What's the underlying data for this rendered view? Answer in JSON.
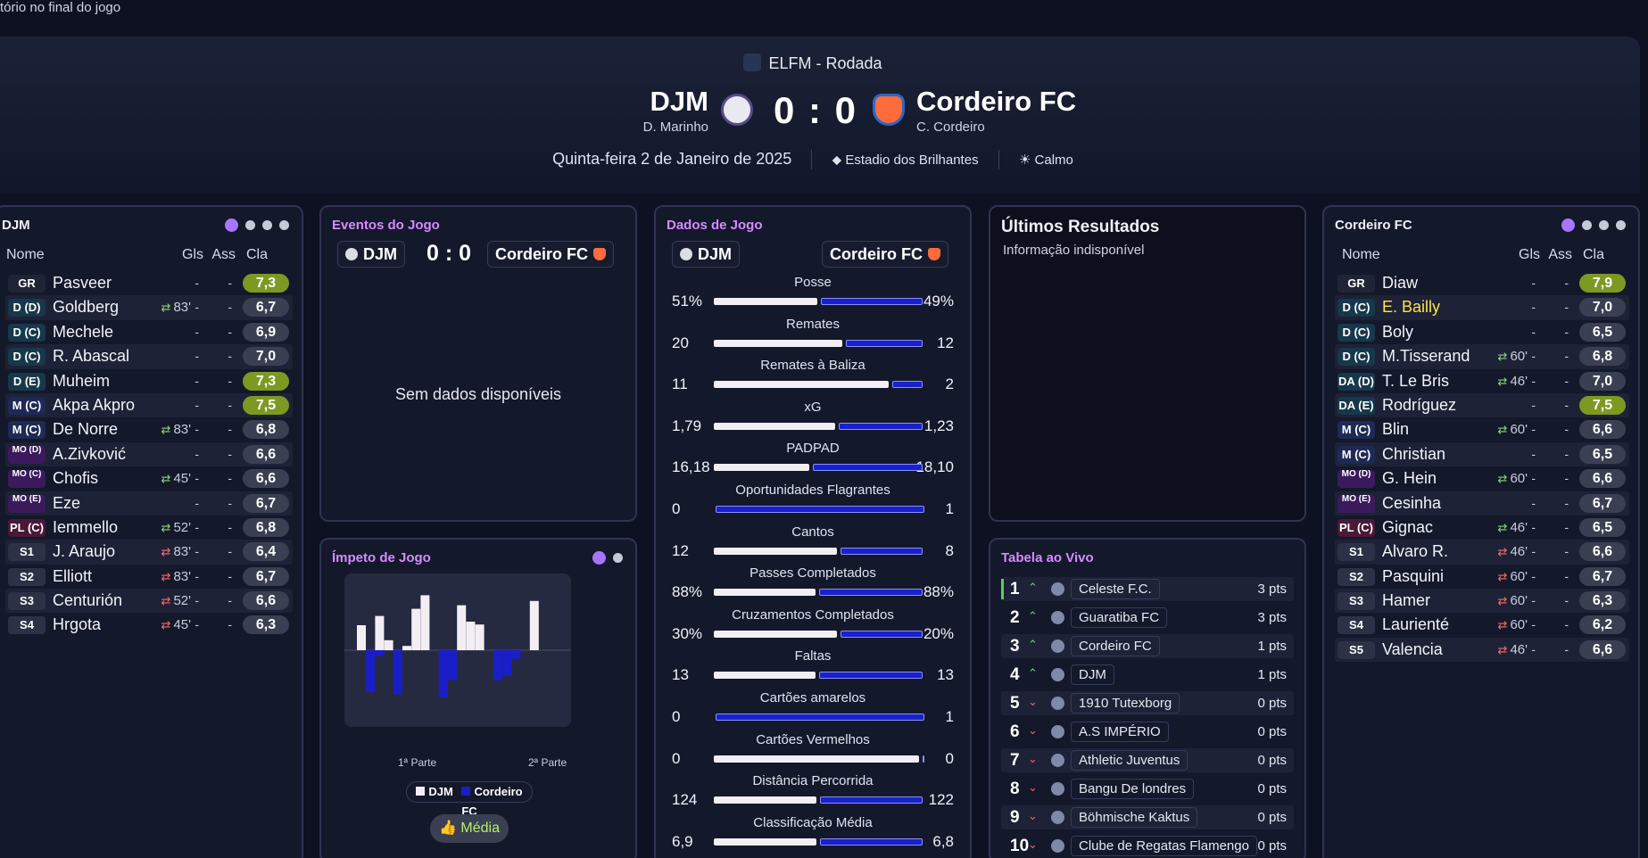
{
  "top_caption": "tório no final do jogo",
  "header": {
    "competition": "ELFM - Rodada",
    "home": {
      "name": "DJM",
      "manager": "D. Marinho"
    },
    "away": {
      "name": "Cordeiro FC",
      "manager": "C. Cordeiro"
    },
    "score": "0 : 0",
    "date": "Quinta-feira 2 de Janeiro de 2025",
    "stadium": "Estadio dos Brilhantes",
    "weather": "Calmo",
    "weather_icon": "sun-icon",
    "stadium_icon": "stadium-icon"
  },
  "lineup_home": {
    "title": "DJM",
    "headers": {
      "name": "Nome",
      "gls": "Gls",
      "ass": "Ass",
      "cla": "Cla"
    },
    "players": [
      {
        "pos": "GR",
        "name": "Pasveer",
        "sub": "",
        "gls": "-",
        "ass": "-",
        "rating": "7,3"
      },
      {
        "pos": "D (D)",
        "name": "Goldberg",
        "sub": "83'",
        "gls": "-",
        "ass": "-",
        "rating": "6,7"
      },
      {
        "pos": "D (C)",
        "name": "Mechele",
        "sub": "",
        "gls": "-",
        "ass": "-",
        "rating": "6,9"
      },
      {
        "pos": "D (C)",
        "name": "R. Abascal",
        "sub": "",
        "gls": "-",
        "ass": "-",
        "rating": "7,0"
      },
      {
        "pos": "D (E)",
        "name": "Muheim",
        "sub": "",
        "gls": "-",
        "ass": "-",
        "rating": "7,3"
      },
      {
        "pos": "M (C)",
        "name": "Akpa Akpro",
        "sub": "",
        "gls": "-",
        "ass": "-",
        "rating": "7,5"
      },
      {
        "pos": "M (C)",
        "name": "De Norre",
        "sub": "83'",
        "gls": "-",
        "ass": "-",
        "rating": "6,8"
      },
      {
        "pos": "MO (D)",
        "name": "A.Zivković",
        "sub": "",
        "gls": "-",
        "ass": "-",
        "rating": "6,6"
      },
      {
        "pos": "MO (C)",
        "name": "Chofis",
        "sub": "45'",
        "gls": "-",
        "ass": "-",
        "rating": "6,6"
      },
      {
        "pos": "MO (E)",
        "name": "Eze",
        "sub": "",
        "gls": "-",
        "ass": "-",
        "rating": "6,7"
      },
      {
        "pos": "PL (C)",
        "name": "Iemmello",
        "sub": "52'",
        "gls": "-",
        "ass": "-",
        "rating": "6,8"
      },
      {
        "pos": "S1",
        "name": "J. Araujo",
        "sub": "83'",
        "gls": "-",
        "ass": "-",
        "rating": "6,4"
      },
      {
        "pos": "S2",
        "name": "Elliott",
        "sub": "83'",
        "gls": "-",
        "ass": "-",
        "rating": "6,7"
      },
      {
        "pos": "S3",
        "name": "Centurión",
        "sub": "52'",
        "gls": "-",
        "ass": "-",
        "rating": "6,6"
      },
      {
        "pos": "S4",
        "name": "Hrgota",
        "sub": "45'",
        "gls": "-",
        "ass": "-",
        "rating": "6,3"
      }
    ]
  },
  "lineup_away": {
    "title": "Cordeiro FC",
    "headers": {
      "name": "Nome",
      "gls": "Gls",
      "ass": "Ass",
      "cla": "Cla"
    },
    "players": [
      {
        "pos": "GR",
        "name": "Diaw",
        "sub": "",
        "gls": "-",
        "ass": "-",
        "rating": "7,9"
      },
      {
        "pos": "D (C)",
        "name": "E. Bailly",
        "sub": "",
        "gls": "-",
        "ass": "-",
        "rating": "7,0"
      },
      {
        "pos": "D (C)",
        "name": "Boly",
        "sub": "",
        "gls": "-",
        "ass": "-",
        "rating": "6,5"
      },
      {
        "pos": "D (C)",
        "name": "M.Tisserand",
        "sub": "60'",
        "gls": "-",
        "ass": "-",
        "rating": "6,8"
      },
      {
        "pos": "DA (D)",
        "name": "T. Le Bris",
        "sub": "46'",
        "gls": "-",
        "ass": "-",
        "rating": "7,0"
      },
      {
        "pos": "DA (E)",
        "name": "Rodríguez",
        "sub": "",
        "gls": "-",
        "ass": "-",
        "rating": "7,5"
      },
      {
        "pos": "M (C)",
        "name": "Blin",
        "sub": "60'",
        "gls": "-",
        "ass": "-",
        "rating": "6,6"
      },
      {
        "pos": "M (C)",
        "name": "Christian",
        "sub": "",
        "gls": "-",
        "ass": "-",
        "rating": "6,5"
      },
      {
        "pos": "MO (D)",
        "name": "G. Hein",
        "sub": "60'",
        "gls": "-",
        "ass": "-",
        "rating": "6,6"
      },
      {
        "pos": "MO (E)",
        "name": "Cesinha",
        "sub": "",
        "gls": "-",
        "ass": "-",
        "rating": "6,7"
      },
      {
        "pos": "PL (C)",
        "name": "Gignac",
        "sub": "46'",
        "gls": "-",
        "ass": "-",
        "rating": "6,5"
      },
      {
        "pos": "S1",
        "name": "Alvaro R.",
        "sub": "46'",
        "gls": "-",
        "ass": "-",
        "rating": "6,6"
      },
      {
        "pos": "S2",
        "name": "Pasquini",
        "sub": "60'",
        "gls": "-",
        "ass": "-",
        "rating": "6,7"
      },
      {
        "pos": "S3",
        "name": "Hamer",
        "sub": "60'",
        "gls": "-",
        "ass": "-",
        "rating": "6,3"
      },
      {
        "pos": "S4",
        "name": "Laurienté",
        "sub": "60'",
        "gls": "-",
        "ass": "-",
        "rating": "6,2"
      },
      {
        "pos": "S5",
        "name": "Valencia",
        "sub": "46'",
        "gls": "-",
        "ass": "-",
        "rating": "6,6"
      }
    ]
  },
  "events": {
    "title": "Eventos do Jogo",
    "home": "DJM",
    "score": "0 : 0",
    "away": "Cordeiro FC",
    "no_data": "Sem dados disponíveis"
  },
  "stats": {
    "title": "Dados de Jogo",
    "home": "DJM",
    "away": "Cordeiro FC",
    "rows": [
      {
        "label": "Posse",
        "home": "51%",
        "away": "49%",
        "hv": 51,
        "av": 49
      },
      {
        "label": "Remates",
        "home": "20",
        "away": "12",
        "hv": 20,
        "av": 12
      },
      {
        "label": "Remates à Baliza",
        "home": "11",
        "away": "2",
        "hv": 11,
        "av": 2
      },
      {
        "label": "xG",
        "home": "1,79",
        "away": "1,23",
        "hv": 1.79,
        "av": 1.23
      },
      {
        "label": "PADPAD",
        "home": "16,18",
        "away": "18,10",
        "hv": 16.18,
        "av": 18.1
      },
      {
        "label": "Oportunidades Flagrantes",
        "home": "0",
        "away": "1",
        "hv": 0,
        "av": 1
      },
      {
        "label": "Cantos",
        "home": "12",
        "away": "8",
        "hv": 12,
        "av": 8
      },
      {
        "label": "Passes Completados",
        "home": "88%",
        "away": "88%",
        "hv": 88,
        "av": 88
      },
      {
        "label": "Cruzamentos Completados",
        "home": "30%",
        "away": "20%",
        "hv": 30,
        "av": 20
      },
      {
        "label": "Faltas",
        "home": "13",
        "away": "13",
        "hv": 13,
        "av": 13
      },
      {
        "label": "Cartões amarelos",
        "home": "0",
        "away": "1",
        "hv": 0,
        "av": 1
      },
      {
        "label": "Cartões Vermelhos",
        "home": "0",
        "away": "0",
        "hv": 0,
        "av": 0
      },
      {
        "label": "Distância Percorrida",
        "home": "124",
        "away": "122",
        "hv": 124,
        "av": 122
      },
      {
        "label": "Classificação Média",
        "home": "6,9",
        "away": "6,8",
        "hv": 6.9,
        "av": 6.8
      }
    ]
  },
  "results": {
    "title": "Últimos Resultados",
    "subtitle": "Informação indisponível"
  },
  "momentum": {
    "title": "Ímpeto de Jogo",
    "first_half": "1ª Parte",
    "second_half": "2ª Parte",
    "legend_home": "DJM",
    "legend_away": "Cordeiro FC",
    "home_color": "#f3eef3",
    "away_color": "#1a1ec8",
    "button": "Média",
    "button_icon": "thumbs-up-icon"
  },
  "chart_data": {
    "type": "bar",
    "x": [
      1,
      2,
      3,
      4,
      5,
      6,
      7,
      8,
      9,
      10,
      11,
      12,
      13,
      14,
      15,
      16,
      17,
      18,
      19,
      20,
      21,
      22,
      23,
      24
    ],
    "series": [
      {
        "name": "DJM",
        "values": [
          35,
          0,
          48,
          14,
          0,
          6,
          58,
          77,
          0,
          0,
          0,
          63,
          40,
          36,
          0,
          0,
          0,
          0,
          0,
          69,
          0,
          0,
          0,
          0
        ]
      },
      {
        "name": "Cordeiro FC",
        "values": [
          0,
          -58,
          -8,
          0,
          -62,
          0,
          0,
          0,
          0,
          -66,
          -42,
          0,
          0,
          0,
          0,
          -42,
          -36,
          -12,
          0,
          0,
          0,
          0,
          0,
          0
        ]
      }
    ]
  },
  "league_table": {
    "title": "Tabela ao Vivo",
    "rows": [
      {
        "pos": "1",
        "dir": "up",
        "club": "Celeste F.C.",
        "pts": "3 pts"
      },
      {
        "pos": "2",
        "dir": "up",
        "club": "Guaratiba FC",
        "pts": "3 pts"
      },
      {
        "pos": "3",
        "dir": "up",
        "club": "Cordeiro FC",
        "pts": "1 pts"
      },
      {
        "pos": "4",
        "dir": "up",
        "club": "DJM",
        "pts": "1 pts"
      },
      {
        "pos": "5",
        "dir": "down",
        "club": "1910 Tutexborg",
        "pts": "0 pts"
      },
      {
        "pos": "6",
        "dir": "down",
        "club": "A.S IMPÉRIO",
        "pts": "0 pts"
      },
      {
        "pos": "7",
        "dir": "down",
        "club": "Athletic Juventus",
        "pts": "0 pts"
      },
      {
        "pos": "8",
        "dir": "down",
        "club": "Bangu De londres",
        "pts": "0 pts"
      },
      {
        "pos": "9",
        "dir": "down",
        "club": "Böhmische Kaktus",
        "pts": "0 pts"
      },
      {
        "pos": "10",
        "dir": "down",
        "club": "Clube de Regatas Flamengo",
        "pts": "0 pts"
      }
    ]
  }
}
